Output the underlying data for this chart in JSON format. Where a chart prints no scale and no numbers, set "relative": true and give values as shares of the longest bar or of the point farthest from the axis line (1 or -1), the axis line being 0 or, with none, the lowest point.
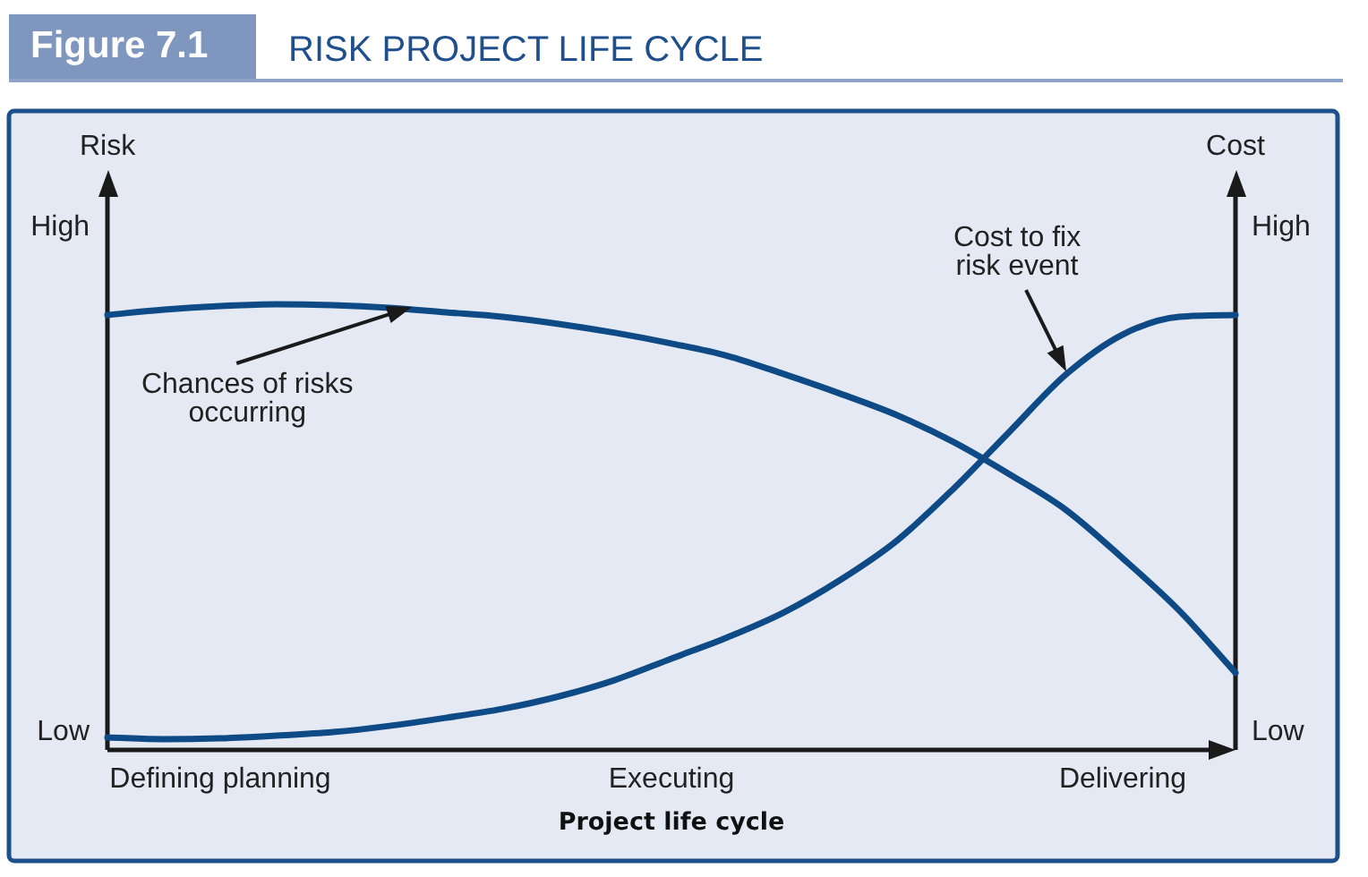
{
  "chart_data": {
    "type": "line",
    "relative": true,
    "title": "RISK PROJECT LIFE CYCLE",
    "annotations": [
      "Figure 7.1",
      "High",
      "Low",
      "High",
      "Low"
    ],
    "xlabel": "Project life cycle",
    "ylabel": "Risk",
    "y2label": "Cost",
    "categories": [
      null,
      null,
      "Defining planning",
      null,
      null,
      null,
      null,
      null,
      null,
      null,
      "Executing",
      null,
      null,
      null,
      null,
      null,
      null,
      null,
      "Delivering",
      null,
      null
    ],
    "series": [
      {
        "name": "Chances of risks occurring",
        "color": "#0e4a85",
        "values": [
          0.976,
          0.988,
          0.996,
          1,
          0.998,
          0.992,
          0.982,
          0.972,
          0.956,
          0.936,
          0.912,
          0.884,
          0.843,
          0.799,
          0.751,
          0.691,
          0.618,
          0.538,
          0.43,
          0.313,
          0.173
        ]
      },
      {
        "name": "Cost to fix risk event",
        "color": "#0e4a85",
        "axis": "y2",
        "values": [
          0.028,
          0.024,
          0.026,
          0.032,
          0.04,
          0.054,
          0.072,
          0.092,
          0.12,
          0.157,
          0.205,
          0.253,
          0.309,
          0.382,
          0.47,
          0.586,
          0.715,
          0.843,
          0.932,
          0.972,
          0.976
        ]
      }
    ]
  }
}
